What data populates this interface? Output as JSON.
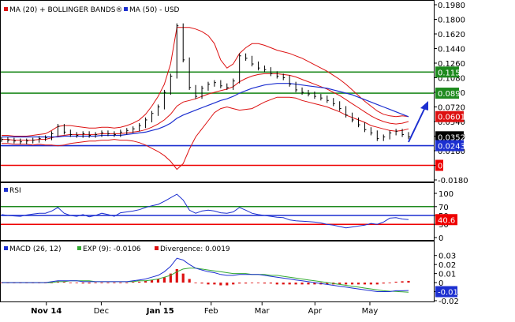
{
  "colors": {
    "frame": "#000000",
    "price": "#000000",
    "ma20": "#dd1111",
    "bands": "#dd1111",
    "ma50": "#1c2fd0",
    "green_line": "#1e8a1e",
    "red_line": "#ee0000",
    "blue_line": "#1c2fd0",
    "rsi": "#1c2fd0",
    "macd": "#1c2fd0",
    "signal": "#33aa33",
    "divergence": "#dd1111",
    "arrow": "#1c2fd0"
  },
  "price_panel": {
    "legend": {
      "ma_label": "MA (20) + BOLLINGER BANDS®",
      "ma50_label": "MA (50) - USD"
    },
    "y_ticks": [
      "0.1980",
      "0.1800",
      "0.1620",
      "0.1440",
      "0.1260",
      "0.1080",
      "0.0900",
      "0.0720",
      "0.0540",
      "0.0360",
      "0.0180",
      "0",
      "-0.0180"
    ],
    "levels": {
      "resistance_1": "0.115",
      "resistance_2": "0.089",
      "ma20_value": "0.0601",
      "last_price": "0.0352",
      "support": "0.0243",
      "zero": "0"
    }
  },
  "rsi_panel": {
    "legend": "RSI",
    "y_ticks": [
      "100",
      "70",
      "50",
      "30",
      "0"
    ],
    "value": "40.6"
  },
  "macd_panel": {
    "legend_macd": "MACD (26, 12)",
    "legend_exp": "EXP (9): -0.0106",
    "legend_div": "Divergence: 0.0019",
    "y_ticks": [
      "0.03",
      "0.02",
      "0.01",
      "0",
      "-0.01",
      "-0.02"
    ],
    "value": "-0.01"
  },
  "x_axis": {
    "labels": [
      "Nov 14",
      "Dec",
      "Jan 15",
      "Feb",
      "Mar",
      "Apr",
      "May"
    ]
  },
  "chart_data": {
    "type": "line",
    "ylim": [
      -0.018,
      0.198
    ],
    "series": [
      {
        "values": [
          0.032,
          0.031,
          0.03,
          0.029,
          0.03,
          0.031,
          0.033,
          0.034,
          0.039,
          0.048,
          0.041,
          0.038,
          0.037,
          0.039,
          0.037,
          0.038,
          0.04,
          0.039,
          0.038,
          0.041,
          0.043,
          0.045,
          0.049,
          0.056,
          0.064,
          0.072,
          0.09,
          0.11,
          0.172,
          0.13,
          0.096,
          0.085,
          0.095,
          0.1,
          0.102,
          0.098,
          0.096,
          0.104,
          0.135,
          0.132,
          0.125,
          0.12,
          0.118,
          0.113,
          0.11,
          0.108,
          0.1,
          0.093,
          0.09,
          0.088,
          0.085,
          0.083,
          0.08,
          0.076,
          0.07,
          0.062,
          0.056,
          0.05,
          0.044,
          0.04,
          0.033,
          0.035,
          0.04,
          0.042,
          0.038,
          0.0352
        ]
      },
      {
        "values": [
          0.032,
          0.032,
          0.031,
          0.031,
          0.031,
          0.031,
          0.032,
          0.032,
          0.034,
          0.036,
          0.037,
          0.038,
          0.038,
          0.038,
          0.038,
          0.038,
          0.039,
          0.039,
          0.039,
          0.039,
          0.04,
          0.041,
          0.042,
          0.044,
          0.047,
          0.051,
          0.056,
          0.063,
          0.073,
          0.078,
          0.08,
          0.082,
          0.085,
          0.088,
          0.09,
          0.092,
          0.094,
          0.097,
          0.103,
          0.107,
          0.11,
          0.112,
          0.113,
          0.113,
          0.113,
          0.112,
          0.111,
          0.109,
          0.106,
          0.103,
          0.1,
          0.097,
          0.094,
          0.09,
          0.086,
          0.081,
          0.076,
          0.071,
          0.066,
          0.061,
          0.057,
          0.054,
          0.052,
          0.051,
          0.052,
          0.054
        ]
      },
      {
        "values": [
          0.037,
          0.037,
          0.036,
          0.036,
          0.036,
          0.037,
          0.038,
          0.039,
          0.043,
          0.048,
          0.049,
          0.049,
          0.048,
          0.047,
          0.046,
          0.046,
          0.047,
          0.047,
          0.046,
          0.047,
          0.049,
          0.052,
          0.056,
          0.063,
          0.073,
          0.085,
          0.1,
          0.125,
          0.17,
          0.17,
          0.17,
          0.168,
          0.165,
          0.16,
          0.15,
          0.13,
          0.12,
          0.125,
          0.138,
          0.145,
          0.15,
          0.15,
          0.148,
          0.145,
          0.142,
          0.14,
          0.138,
          0.135,
          0.132,
          0.128,
          0.124,
          0.12,
          0.116,
          0.111,
          0.106,
          0.1,
          0.093,
          0.086,
          0.079,
          0.073,
          0.067,
          0.063,
          0.061,
          0.06,
          0.061,
          0.0601
        ]
      },
      {
        "values": [
          0.027,
          0.027,
          0.026,
          0.026,
          0.026,
          0.025,
          0.026,
          0.025,
          0.025,
          0.024,
          0.025,
          0.027,
          0.028,
          0.029,
          0.03,
          0.03,
          0.031,
          0.031,
          0.032,
          0.031,
          0.031,
          0.03,
          0.028,
          0.025,
          0.021,
          0.017,
          0.012,
          0.005,
          -0.005,
          0.002,
          0.02,
          0.035,
          0.045,
          0.055,
          0.065,
          0.07,
          0.072,
          0.07,
          0.068,
          0.069,
          0.07,
          0.074,
          0.078,
          0.081,
          0.084,
          0.084,
          0.084,
          0.083,
          0.08,
          0.078,
          0.076,
          0.074,
          0.072,
          0.069,
          0.066,
          0.062,
          0.059,
          0.056,
          0.053,
          0.049,
          0.047,
          0.045,
          0.043,
          0.042,
          0.043,
          0.045
        ]
      },
      {
        "values": [
          0.035,
          0.035,
          0.035,
          0.035,
          0.035,
          0.035,
          0.035,
          0.035,
          0.035,
          0.035,
          0.036,
          0.036,
          0.036,
          0.036,
          0.036,
          0.036,
          0.037,
          0.037,
          0.037,
          0.037,
          0.038,
          0.039,
          0.04,
          0.041,
          0.043,
          0.045,
          0.048,
          0.052,
          0.058,
          0.062,
          0.065,
          0.068,
          0.071,
          0.074,
          0.077,
          0.08,
          0.082,
          0.085,
          0.089,
          0.092,
          0.095,
          0.097,
          0.099,
          0.1,
          0.101,
          0.101,
          0.101,
          0.1,
          0.099,
          0.098,
          0.097,
          0.096,
          0.095,
          0.093,
          0.091,
          0.089,
          0.087,
          0.084,
          0.081,
          0.078,
          0.075,
          0.072,
          0.069,
          0.066,
          0.063,
          0.06
        ]
      }
    ],
    "levels": [
      0.115,
      0.089,
      0.0243,
      0
    ],
    "rsi": {
      "ylim": [
        0,
        100
      ],
      "levels": [
        70,
        50,
        30
      ],
      "values": [
        52,
        50,
        49,
        48,
        51,
        53,
        55,
        55,
        60,
        68,
        55,
        50,
        48,
        52,
        47,
        50,
        55,
        52,
        48,
        56,
        58,
        60,
        63,
        68,
        72,
        75,
        82,
        90,
        98,
        85,
        62,
        55,
        60,
        62,
        60,
        56,
        55,
        58,
        68,
        62,
        55,
        52,
        50,
        48,
        46,
        45,
        40,
        38,
        37,
        36,
        35,
        33,
        30,
        28,
        25,
        22,
        24,
        26,
        28,
        32,
        30,
        35,
        44,
        45,
        42,
        40.6
      ]
    },
    "macd": {
      "ylim": [
        -0.02,
        0.035
      ],
      "macd": [
        0.0,
        0.0,
        0.0,
        0.0,
        0.0,
        0.0,
        0.0,
        0.0,
        0.001,
        0.002,
        0.002,
        0.002,
        0.002,
        0.001,
        0.001,
        0.001,
        0.001,
        0.001,
        0.001,
        0.001,
        0.001,
        0.002,
        0.003,
        0.004,
        0.006,
        0.008,
        0.012,
        0.018,
        0.027,
        0.025,
        0.02,
        0.016,
        0.014,
        0.012,
        0.011,
        0.009,
        0.008,
        0.008,
        0.009,
        0.009,
        0.009,
        0.009,
        0.008,
        0.007,
        0.006,
        0.005,
        0.004,
        0.003,
        0.002,
        0.001,
        0.0,
        -0.001,
        -0.002,
        -0.003,
        -0.004,
        -0.005,
        -0.006,
        -0.007,
        -0.008,
        -0.009,
        -0.01,
        -0.01,
        -0.01,
        -0.009,
        -0.009,
        -0.0087
      ],
      "signal": [
        0.0,
        0.0,
        0.0,
        0.0,
        0.0,
        0.0,
        0.0,
        0.0,
        0.0,
        0.001,
        0.001,
        0.002,
        0.002,
        0.002,
        0.002,
        0.001,
        0.001,
        0.001,
        0.001,
        0.001,
        0.001,
        0.001,
        0.002,
        0.002,
        0.003,
        0.004,
        0.006,
        0.008,
        0.012,
        0.015,
        0.016,
        0.016,
        0.015,
        0.014,
        0.013,
        0.012,
        0.011,
        0.01,
        0.01,
        0.01,
        0.009,
        0.009,
        0.009,
        0.008,
        0.008,
        0.007,
        0.006,
        0.005,
        0.004,
        0.003,
        0.002,
        0.001,
        0.0,
        -0.001,
        -0.002,
        -0.003,
        -0.004,
        -0.005,
        -0.006,
        -0.007,
        -0.008,
        -0.009,
        -0.0095,
        -0.0098,
        -0.0102,
        -0.0106
      ],
      "divergence": [
        0.0,
        0.0,
        0.0,
        0.0,
        0.0,
        0.0,
        0.0,
        0.0,
        0.0,
        0.001,
        0.001,
        0.0,
        0.0,
        -0.001,
        -0.001,
        0.0,
        0.0,
        0.0,
        0.0,
        0.0,
        0.0,
        0.001,
        0.001,
        0.002,
        0.003,
        0.004,
        0.006,
        0.01,
        0.015,
        0.01,
        0.004,
        0.0,
        -0.001,
        -0.002,
        -0.002,
        -0.003,
        -0.003,
        -0.002,
        -0.001,
        -0.001,
        0.0,
        0.0,
        -0.001,
        -0.001,
        -0.002,
        -0.002,
        -0.002,
        -0.002,
        -0.002,
        -0.002,
        -0.002,
        -0.002,
        -0.002,
        -0.002,
        -0.002,
        -0.002,
        -0.002,
        -0.002,
        -0.002,
        -0.002,
        -0.002,
        -0.001,
        0.0,
        0.001,
        0.0015,
        0.0019
      ]
    }
  }
}
